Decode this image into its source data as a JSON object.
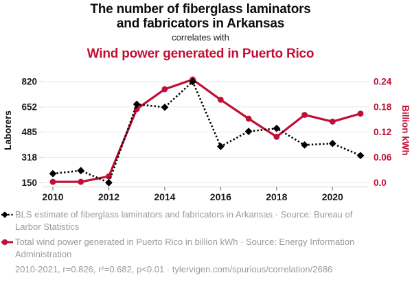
{
  "header": {
    "title_line1": "The number of fiberglass laminators",
    "title_line2": "and fabricators in Arkansas",
    "connector": "correlates with",
    "subtitle": "Wind power generated in Puerto Rico"
  },
  "colors": {
    "accent_red": "#c00e35",
    "series_black": "#000000",
    "legend_gray": "#9a9a9a",
    "gridline": "#e8e8e8",
    "axis_line": "#d4d4d4",
    "tick": "#8a8a8a",
    "tick_label": "#1a1a1a"
  },
  "chart_data": {
    "type": "line",
    "x": [
      2010,
      2011,
      2012,
      2013,
      2014,
      2015,
      2016,
      2017,
      2018,
      2019,
      2020,
      2021
    ],
    "series": [
      {
        "name": "BLS estimate of fiberglass laminators and fabricators in Arkansas",
        "axis": "left",
        "color": "#000000",
        "line_style": "dashed",
        "marker": "diamond",
        "values": [
          210,
          230,
          150,
          670,
          650,
          820,
          390,
          490,
          510,
          400,
          410,
          330
        ]
      },
      {
        "name": "Total wind power generated in Puerto Rico in billion kWh",
        "axis": "right",
        "color": "#c00e35",
        "line_style": "solid",
        "marker": "circle",
        "values": [
          0.002,
          0.002,
          0.015,
          0.175,
          0.222,
          0.245,
          0.197,
          0.152,
          0.109,
          0.161,
          0.145,
          0.164
        ]
      }
    ],
    "left_axis": {
      "label": "Laborers",
      "ticks": [
        150,
        318,
        485,
        652,
        820
      ],
      "range": [
        150,
        820
      ]
    },
    "right_axis": {
      "label": "Billion kWh",
      "tick_labels": [
        "0.0",
        "0.06",
        "0.12",
        "0.18",
        "0.24"
      ],
      "tick_values": [
        0,
        0.06,
        0.12,
        0.18,
        0.24
      ],
      "range": [
        0,
        0.24
      ]
    },
    "x_tick_labels": [
      2010,
      2012,
      2014,
      2016,
      2018,
      2020
    ],
    "grid": "horizontal",
    "legend_position": "bottom"
  },
  "legend": {
    "items": [
      {
        "marker": "diamond-dashed",
        "color": "#000000",
        "text": "BLS estimate of fiberglass laminators and fabricators in Arkansas · Source: Bureau of Larbor Statistics"
      },
      {
        "marker": "circle-solid",
        "color": "#c00e35",
        "text": "Total wind power generated in Puerto Rico in billion kWh · Source: Energy Information Administration"
      }
    ],
    "footnote": "2010-2021, r=0.826, r²=0.682, p<0.01 · tylervigen.com/spurious/correlation/2686"
  }
}
